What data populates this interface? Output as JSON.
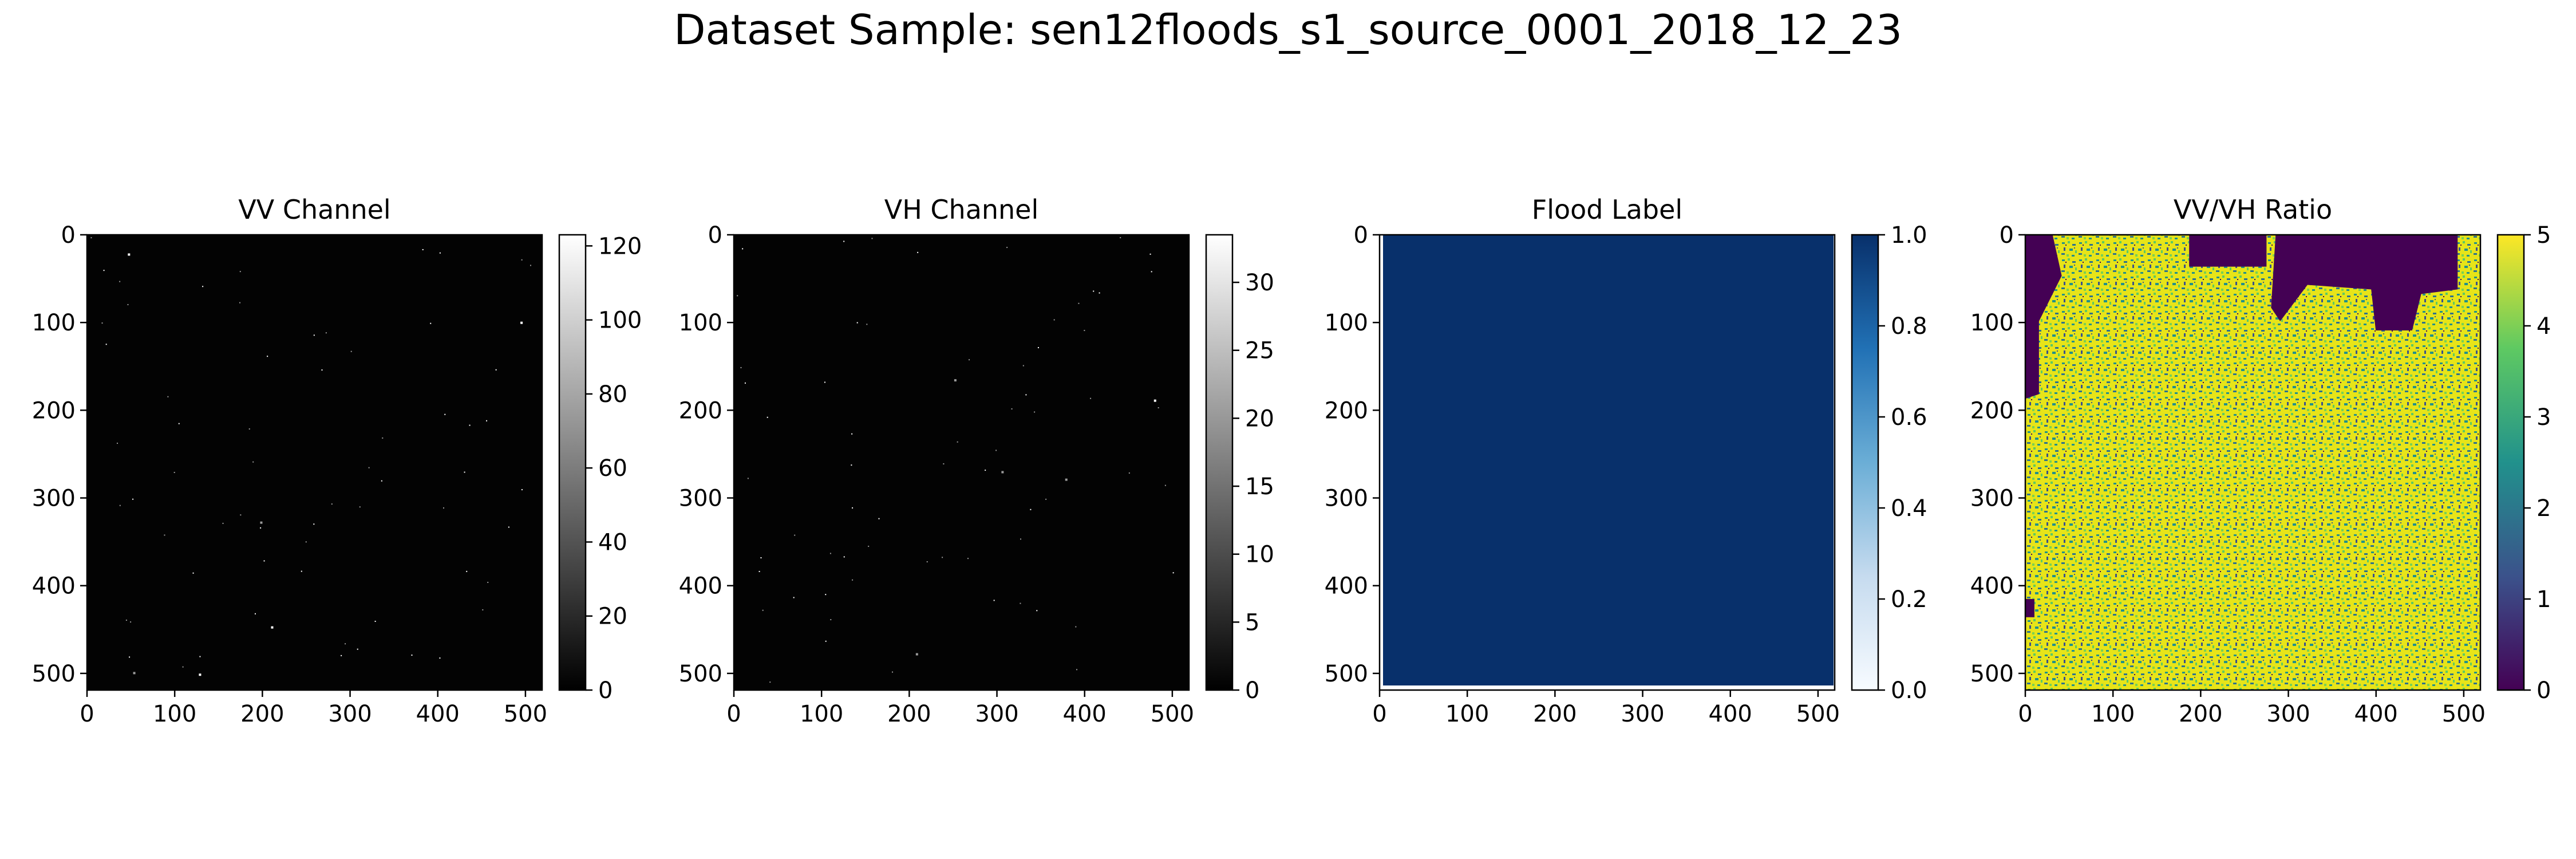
{
  "figure": {
    "suptitle": "Dataset Sample: sen12floods_s1_source_0001_2018_12_23"
  },
  "chart_data": [
    {
      "type": "heatmap",
      "title": "VV Channel",
      "image_content": "near-black field with a few sparse bright speckles",
      "xlim": [
        0,
        519
      ],
      "ylim": [
        519,
        0
      ],
      "xticks": [
        0,
        100,
        200,
        300,
        400,
        500
      ],
      "yticks": [
        0,
        100,
        200,
        300,
        400,
        500
      ],
      "colormap": "gray",
      "colorbar": {
        "vmin": 0,
        "vmax": 123,
        "ticks": [
          0,
          20,
          40,
          60,
          80,
          100,
          120
        ]
      }
    },
    {
      "type": "heatmap",
      "title": "VH Channel",
      "image_content": "near-black field with a few sparse bright speckles",
      "xlim": [
        0,
        519
      ],
      "ylim": [
        519,
        0
      ],
      "xticks": [
        0,
        100,
        200,
        300,
        400,
        500
      ],
      "yticks": [
        0,
        100,
        200,
        300,
        400,
        500
      ],
      "colormap": "gray",
      "colorbar": {
        "vmin": 0,
        "vmax": 33.5,
        "ticks": [
          0,
          5,
          10,
          15,
          20,
          25,
          30
        ]
      }
    },
    {
      "type": "heatmap",
      "title": "Flood Label",
      "image_content": "uniform dark blue (value 1.0) over nearly the whole image, thin white slivers along the left and bottom edges",
      "xlim": [
        0,
        519
      ],
      "ylim": [
        519,
        0
      ],
      "xticks": [
        0,
        100,
        200,
        300,
        400,
        500
      ],
      "yticks": [
        0,
        100,
        200,
        300,
        400,
        500
      ],
      "colormap": "Blues",
      "colorbar": {
        "vmin": 0.0,
        "vmax": 1.0,
        "ticks": [
          "0.0",
          "0.2",
          "0.4",
          "0.6",
          "0.8",
          "1.0"
        ]
      }
    },
    {
      "type": "heatmap",
      "title": "VV/VH Ratio",
      "image_content": "noisy yellow/green/teal texture; dark purple (value 0) regions along the top edge right of center and along the left edge",
      "xlim": [
        0,
        519
      ],
      "ylim": [
        519,
        0
      ],
      "xticks": [
        0,
        100,
        200,
        300,
        400,
        500
      ],
      "yticks": [
        0,
        100,
        200,
        300,
        400,
        500
      ],
      "colormap": "viridis",
      "colorbar": {
        "vmin": 0,
        "vmax": 5,
        "ticks": [
          0,
          1,
          2,
          3,
          4,
          5
        ]
      }
    }
  ]
}
